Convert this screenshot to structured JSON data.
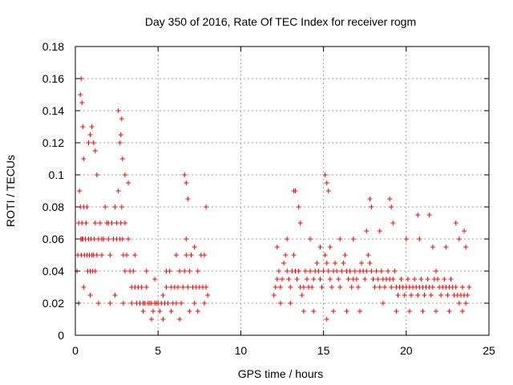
{
  "chart_data": {
    "type": "scatter",
    "title": "Day 350 of 2016, Rate Of TEC Index for receiver rogm",
    "xlabel": "GPS time / hours",
    "ylabel": "ROTI / TECUs",
    "xlim": [
      0,
      25
    ],
    "ylim": [
      0,
      0.18
    ],
    "xticks": [
      "0",
      "5",
      "10",
      "15",
      "20",
      "25"
    ],
    "yticks": [
      "0",
      "0.02",
      "0.04",
      "0.06",
      "0.08",
      "0.1",
      "0.12",
      "0.14",
      "0.16",
      "0.18"
    ],
    "grid": true,
    "marker": "+",
    "color": "#ff0000",
    "series": [
      {
        "x": [
          0.1,
          0.15,
          0.2,
          0.25,
          0.3,
          0.33,
          0.36,
          0.4,
          0.45,
          0.5,
          0.55,
          0.6,
          0.65,
          0.7,
          0.75,
          0.8,
          0.85,
          0.9,
          0.95,
          1.0,
          1.05,
          1.1,
          1.15,
          1.2,
          1.3,
          1.4,
          1.5,
          1.6,
          1.7,
          1.8,
          1.9,
          2.0,
          2.1,
          2.2,
          2.3,
          2.4,
          2.5,
          2.6,
          2.7,
          2.75,
          2.8,
          2.85,
          2.9,
          3.0,
          3.1,
          3.2,
          3.3,
          3.4,
          3.5,
          3.6,
          3.7,
          3.8,
          3.9,
          4.0,
          4.1,
          4.2,
          4.3,
          4.4,
          4.5,
          4.6,
          4.7,
          4.8,
          4.9,
          5.0,
          5.1,
          5.2,
          5.3,
          5.4,
          5.5,
          5.6,
          5.7,
          5.8,
          5.9,
          6.0,
          6.1,
          6.2,
          6.3,
          6.4,
          6.5,
          6.6,
          6.7,
          6.8,
          6.9,
          7.0,
          7.1,
          7.2,
          7.3,
          7.4,
          7.5,
          7.6,
          7.7,
          7.8,
          7.9,
          8.0,
          12.0,
          12.1,
          12.2,
          12.3,
          12.4,
          12.5,
          12.6,
          12.7,
          12.8,
          12.9,
          13.0,
          13.1,
          13.2,
          13.3,
          13.4,
          13.5,
          13.6,
          13.7,
          13.8,
          13.9,
          14.0,
          14.1,
          14.2,
          14.3,
          14.4,
          14.5,
          14.6,
          14.7,
          14.8,
          14.9,
          15.0,
          15.1,
          15.2,
          15.3,
          15.4,
          15.5,
          15.6,
          15.7,
          15.8,
          15.9,
          16.0,
          16.1,
          16.2,
          16.3,
          16.4,
          16.5,
          16.6,
          16.7,
          16.8,
          16.9,
          17.0,
          17.1,
          17.2,
          17.3,
          17.4,
          17.5,
          17.6,
          17.7,
          17.8,
          17.9,
          18.0,
          18.1,
          18.2,
          18.3,
          18.4,
          18.5,
          18.6,
          18.7,
          18.8,
          18.9,
          19.0,
          19.1,
          19.2,
          19.3,
          19.4,
          19.5,
          19.6,
          19.7,
          19.8,
          19.9,
          20.0,
          20.1,
          20.2,
          20.3,
          20.4,
          20.5,
          20.6,
          20.7,
          20.8,
          20.9,
          21.0,
          21.1,
          21.2,
          21.3,
          21.4,
          21.5,
          21.6,
          21.7,
          21.8,
          21.9,
          22.0,
          22.1,
          22.2,
          22.3,
          22.4,
          22.5,
          22.6,
          22.7,
          22.8,
          22.9,
          23.0,
          23.1,
          23.2,
          23.3,
          23.4,
          23.5,
          23.6,
          23.7,
          23.8,
          0.3,
          0.35,
          0.4,
          0.45,
          0.5,
          0.8,
          0.9,
          1.0,
          1.1,
          1.2,
          1.3,
          2.6,
          2.7,
          2.75,
          2.8,
          2.85,
          3.0,
          3.2,
          6.6,
          6.7,
          6.8,
          7.9,
          13.2,
          13.3,
          13.5,
          15.1,
          15.2,
          15.3,
          17.8,
          17.9,
          19.0,
          19.1,
          20.7,
          21.4,
          23.0,
          23.5,
          0.2,
          0.5,
          0.9,
          1.4,
          2.1,
          2.4,
          2.9,
          3.4,
          4.1,
          4.6,
          5.3,
          5.8,
          6.3,
          6.9,
          7.4,
          12.4,
          13.0,
          13.8,
          14.4,
          15.2,
          15.6,
          16.4,
          17.2,
          18.6,
          19.4,
          20.2,
          21.0,
          21.8,
          22.6,
          23.4,
          0.4,
          0.7,
          1.2,
          1.6,
          2.0,
          2.5,
          3.0,
          3.6,
          4.3,
          4.8,
          5.5,
          6.1,
          6.7,
          7.2,
          7.8,
          12.2,
          12.8,
          13.6,
          14.2,
          14.8,
          15.4,
          16.0,
          16.8,
          17.6,
          18.4,
          19.2,
          20.0,
          20.8,
          21.6,
          22.4,
          23.2,
          23.6
        ],
        "y": [
          0.04,
          0.05,
          0.07,
          0.09,
          0.08,
          0.06,
          0.05,
          0.07,
          0.06,
          0.08,
          0.05,
          0.06,
          0.07,
          0.05,
          0.04,
          0.06,
          0.05,
          0.04,
          0.06,
          0.05,
          0.04,
          0.05,
          0.06,
          0.04,
          0.05,
          0.06,
          0.07,
          0.05,
          0.06,
          0.08,
          0.07,
          0.06,
          0.05,
          0.07,
          0.06,
          0.08,
          0.07,
          0.09,
          0.06,
          0.07,
          0.08,
          0.06,
          0.05,
          0.04,
          0.05,
          0.06,
          0.04,
          0.03,
          0.04,
          0.03,
          0.02,
          0.03,
          0.02,
          0.03,
          0.02,
          0.02,
          0.03,
          0.02,
          0.02,
          0.02,
          0.015,
          0.02,
          0.02,
          0.02,
          0.015,
          0.02,
          0.025,
          0.02,
          0.03,
          0.02,
          0.04,
          0.03,
          0.02,
          0.03,
          0.02,
          0.03,
          0.04,
          0.02,
          0.03,
          0.04,
          0.05,
          0.03,
          0.04,
          0.05,
          0.03,
          0.02,
          0.03,
          0.04,
          0.03,
          0.05,
          0.03,
          0.02,
          0.03,
          0.025,
          0.025,
          0.03,
          0.035,
          0.04,
          0.03,
          0.035,
          0.045,
          0.05,
          0.04,
          0.035,
          0.03,
          0.04,
          0.05,
          0.04,
          0.035,
          0.04,
          0.03,
          0.025,
          0.03,
          0.04,
          0.035,
          0.03,
          0.04,
          0.03,
          0.035,
          0.04,
          0.045,
          0.04,
          0.035,
          0.03,
          0.04,
          0.05,
          0.045,
          0.04,
          0.035,
          0.03,
          0.04,
          0.045,
          0.04,
          0.035,
          0.03,
          0.04,
          0.045,
          0.05,
          0.04,
          0.035,
          0.04,
          0.03,
          0.035,
          0.04,
          0.035,
          0.03,
          0.04,
          0.045,
          0.04,
          0.035,
          0.04,
          0.05,
          0.045,
          0.04,
          0.035,
          0.03,
          0.04,
          0.035,
          0.03,
          0.04,
          0.035,
          0.03,
          0.035,
          0.04,
          0.035,
          0.03,
          0.035,
          0.04,
          0.03,
          0.025,
          0.03,
          0.035,
          0.03,
          0.025,
          0.03,
          0.035,
          0.03,
          0.025,
          0.03,
          0.035,
          0.03,
          0.025,
          0.03,
          0.035,
          0.03,
          0.025,
          0.03,
          0.035,
          0.03,
          0.025,
          0.03,
          0.035,
          0.04,
          0.035,
          0.03,
          0.025,
          0.03,
          0.035,
          0.03,
          0.025,
          0.03,
          0.035,
          0.03,
          0.025,
          0.03,
          0.025,
          0.02,
          0.025,
          0.03,
          0.025,
          0.02,
          0.025,
          0.03,
          0.15,
          0.16,
          0.145,
          0.13,
          0.11,
          0.12,
          0.125,
          0.13,
          0.12,
          0.115,
          0.1,
          0.14,
          0.12,
          0.125,
          0.135,
          0.11,
          0.1,
          0.095,
          0.1,
          0.095,
          0.085,
          0.08,
          0.09,
          0.09,
          0.08,
          0.1,
          0.095,
          0.09,
          0.085,
          0.08,
          0.085,
          0.08,
          0.075,
          0.075,
          0.07,
          0.065,
          0.02,
          0.03,
          0.025,
          0.02,
          0.02,
          0.025,
          0.02,
          0.02,
          0.015,
          0.01,
          0.01,
          0.015,
          0.01,
          0.015,
          0.015,
          0.02,
          0.02,
          0.015,
          0.015,
          0.01,
          0.015,
          0.015,
          0.015,
          0.02,
          0.015,
          0.015,
          0.015,
          0.015,
          0.015,
          0.015,
          0.06,
          0.08,
          0.07,
          0.06,
          0.07,
          0.06,
          0.07,
          0.05,
          0.04,
          0.035,
          0.04,
          0.05,
          0.06,
          0.055,
          0.05,
          0.055,
          0.06,
          0.07,
          0.06,
          0.055,
          0.055,
          0.06,
          0.06,
          0.065,
          0.065,
          0.07,
          0.06,
          0.06,
          0.055,
          0.055,
          0.06,
          0.055
        ]
      }
    ]
  }
}
